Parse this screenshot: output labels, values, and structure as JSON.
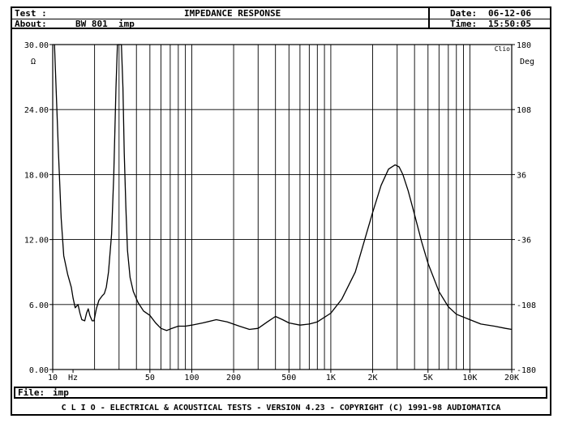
{
  "header": {
    "test_label": "Test :",
    "about_label": "About:",
    "about_value": "BW 801  imp",
    "title": "IMPEDANCE RESPONSE",
    "date_label": "Date:",
    "date_value": "06-12-06",
    "time_label": "Time:",
    "time_value": "15:50:05"
  },
  "file": {
    "label": "File:",
    "value": "imp"
  },
  "footer": {
    "text": "C L I O  -  ELECTRICAL & ACOUSTICAL TESTS  -  VERSION 4.23  -  COPYRIGHT (C) 1991-98 AUDIOMATICA"
  },
  "chart_data": {
    "type": "line",
    "title": "IMPEDANCE RESPONSE",
    "x_scale": "log",
    "xlim": [
      10,
      20000
    ],
    "ylim": [
      0,
      30
    ],
    "y2lim": [
      -180,
      180
    ],
    "grid": true,
    "x_ticks": [
      {
        "value": 10,
        "label": "10"
      },
      {
        "value": 14,
        "label": "Hz"
      },
      {
        "value": 50,
        "label": "50"
      },
      {
        "value": 100,
        "label": "100"
      },
      {
        "value": 200,
        "label": "200"
      },
      {
        "value": 500,
        "label": "500"
      },
      {
        "value": 1000,
        "label": "1K"
      },
      {
        "value": 2000,
        "label": "2K"
      },
      {
        "value": 5000,
        "label": "5K"
      },
      {
        "value": 10000,
        "label": "10K"
      },
      {
        "value": 20000,
        "label": "20K"
      }
    ],
    "y_ticks": [
      "0.00",
      "6.00",
      "12.00",
      "18.00",
      "24.00",
      "30.00"
    ],
    "y_ticks_values": [
      0,
      6,
      12,
      18,
      24,
      30
    ],
    "y_unit": "Ω",
    "y2_ticks": [
      "-180",
      "-108",
      "-36",
      "36",
      "108",
      "180"
    ],
    "y2_ticks_values": [
      -180,
      -108,
      -36,
      36,
      108,
      180
    ],
    "y2_unit": "Deg",
    "brand": "Clio",
    "series": [
      {
        "color": "#000000",
        "x": [
          10.3,
          11.0,
          11.5,
          12.0,
          12.8,
          13.6,
          14.0,
          14.5,
          15.2,
          15.7,
          16.2,
          17.0,
          17.5,
          18.0,
          18.5,
          19.2,
          19.8,
          20.6,
          21.5,
          22.7,
          23.5,
          24.3,
          25.2,
          26.5,
          27.5,
          28.5,
          29.2,
          29.8,
          30.5,
          31.2,
          32.0,
          32.7,
          33.6,
          34.5,
          36.0,
          38.0,
          41.0,
          45.0,
          50.0,
          55.0,
          60.0,
          66.0,
          72.0,
          80.0,
          90.0,
          100.0,
          120.0,
          150.0,
          180.0,
          220.0,
          260.0,
          300.0,
          350.0,
          400.0,
          450.0,
          500.0,
          600.0,
          700.0,
          800.0,
          1000.0,
          1200.0,
          1500.0,
          1800.0,
          2000.0,
          2300.0,
          2600.0,
          2900.0,
          3100.0,
          3300.0,
          3600.0,
          4000.0,
          4500.0,
          5000.0,
          6000.0,
          7000.0,
          8000.0,
          10000.0,
          12000.0,
          15000.0,
          18000.0,
          20000.0
        ],
        "values": [
          30.0,
          20.0,
          14.0,
          10.5,
          8.8,
          7.6,
          6.6,
          5.7,
          6.0,
          5.2,
          4.6,
          4.5,
          5.2,
          5.6,
          5.0,
          4.5,
          4.5,
          5.6,
          6.4,
          6.8,
          7.0,
          7.6,
          9.0,
          12.5,
          18.0,
          26.0,
          30.0,
          30.0,
          30.0,
          30.0,
          26.0,
          20.0,
          15.0,
          11.0,
          8.5,
          7.2,
          6.2,
          5.4,
          5.0,
          4.3,
          3.8,
          3.6,
          3.8,
          4.0,
          4.0,
          4.1,
          4.3,
          4.6,
          4.4,
          4.0,
          3.7,
          3.8,
          4.4,
          4.9,
          4.6,
          4.3,
          4.1,
          4.2,
          4.4,
          5.2,
          6.5,
          9.0,
          12.5,
          14.5,
          17.0,
          18.5,
          18.9,
          18.7,
          18.0,
          16.5,
          14.3,
          11.8,
          9.8,
          7.2,
          5.8,
          5.1,
          4.6,
          4.2,
          4.0,
          3.8,
          3.7
        ]
      }
    ]
  }
}
